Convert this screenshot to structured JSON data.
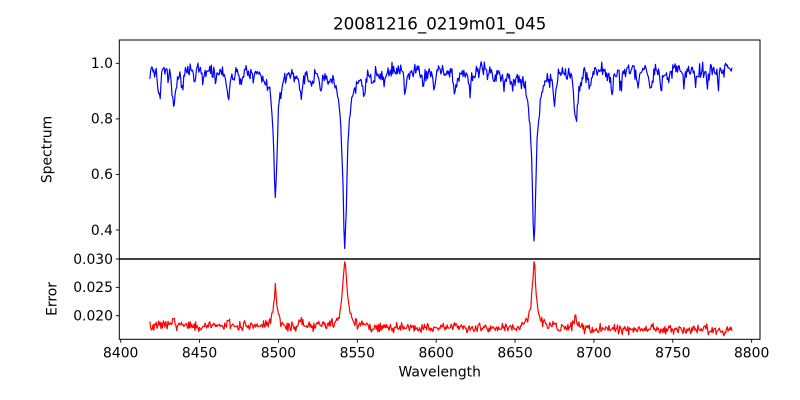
{
  "chart_data": {
    "type": "line",
    "title": "20081216_0219m01_045",
    "xlabel": "Wavelength",
    "grid": false,
    "legend": false,
    "xlim": [
      8399.1,
      8805.3
    ],
    "x_ticks": [
      8400,
      8450,
      8500,
      8550,
      8600,
      8650,
      8700,
      8750,
      8800
    ],
    "x_tick_labels": [
      "8400",
      "8450",
      "8500",
      "8550",
      "8600",
      "8650",
      "8700",
      "8750",
      "8800"
    ],
    "x_start": 8418.5,
    "x_end": 8787.5,
    "x_step": 0.5,
    "noise_seed": 7,
    "panels": [
      {
        "ylabel": "Spectrum",
        "color": "#0000ff",
        "ylim": [
          0.2956,
          1.0839
        ],
        "y_ticks": [
          0.4,
          0.6,
          0.8,
          1.0
        ],
        "y_tick_labels": [
          "0.4",
          "0.6",
          "0.8",
          "1.0"
        ],
        "continuum": 0.982,
        "noise_amp": 0.035,
        "lines_format": [
          "center_angstrom",
          "depth",
          "half_width_angstrom"
        ],
        "absorption_lines": [
          [
            8424.5,
            0.1,
            1.0
          ],
          [
            8433.5,
            0.145,
            1.1
          ],
          [
            8439.2,
            0.065,
            0.8
          ],
          [
            8446.8,
            0.05,
            0.8
          ],
          [
            8452.0,
            0.04,
            0.8
          ],
          [
            8460.0,
            0.04,
            0.8
          ],
          [
            8468.3,
            0.12,
            1.1
          ],
          [
            8476.0,
            0.04,
            0.8
          ],
          [
            8484.0,
            0.05,
            0.8
          ],
          [
            8498.0,
            0.407,
            1.3
          ],
          [
            8498.0,
            0.06,
            5.0
          ],
          [
            8514.2,
            0.1,
            1.0
          ],
          [
            8521.0,
            0.05,
            0.8
          ],
          [
            8526.8,
            0.06,
            0.9
          ],
          [
            8542.1,
            0.577,
            1.5
          ],
          [
            8542.1,
            0.07,
            6.0
          ],
          [
            8554.5,
            0.075,
            0.9
          ],
          [
            8560.0,
            0.04,
            0.8
          ],
          [
            8567.0,
            0.04,
            0.8
          ],
          [
            8580.5,
            0.075,
            0.9
          ],
          [
            8592.0,
            0.05,
            0.8
          ],
          [
            8598.8,
            0.07,
            0.9
          ],
          [
            8611.8,
            0.095,
            1.0
          ],
          [
            8621.5,
            0.085,
            0.9
          ],
          [
            8636.0,
            0.04,
            0.8
          ],
          [
            8643.0,
            0.055,
            0.8
          ],
          [
            8648.5,
            0.05,
            0.8
          ],
          [
            8662.1,
            0.55,
            1.5
          ],
          [
            8662.1,
            0.07,
            6.0
          ],
          [
            8674.8,
            0.1,
            1.0
          ],
          [
            8688.6,
            0.19,
            1.4
          ],
          [
            8697.5,
            0.06,
            0.8
          ],
          [
            8711.5,
            0.08,
            0.9
          ],
          [
            8717.0,
            0.065,
            0.8
          ],
          [
            8728.0,
            0.05,
            0.8
          ],
          [
            8736.3,
            0.075,
            0.9
          ],
          [
            8742.5,
            0.07,
            0.9
          ],
          [
            8747.0,
            0.05,
            0.8
          ],
          [
            8757.0,
            0.065,
            0.8
          ],
          [
            8764.5,
            0.06,
            0.8
          ],
          [
            8772.0,
            0.05,
            0.8
          ],
          [
            8779.0,
            0.045,
            0.8
          ]
        ]
      },
      {
        "ylabel": "Error",
        "color": "#ff0000",
        "ylim": [
          0.01584,
          0.03
        ],
        "y_ticks": [
          0.02,
          0.025,
          0.03
        ],
        "y_tick_labels": [
          "0.020",
          "0.025",
          "0.030"
        ],
        "baseline_start": 0.0181,
        "baseline_end": 0.0175,
        "noise_amp": 0.0011,
        "peaks_format": [
          "center_angstrom",
          "height",
          "half_width_angstrom"
        ],
        "peaks": [
          [
            8424.5,
            0.0006,
            1.0
          ],
          [
            8433.5,
            0.0009,
            1.0
          ],
          [
            8456.0,
            0.0007,
            1.0
          ],
          [
            8468.3,
            0.0008,
            1.0
          ],
          [
            8498.0,
            0.0062,
            1.3
          ],
          [
            8498.0,
            0.0006,
            4.0
          ],
          [
            8514.2,
            0.0009,
            1.0
          ],
          [
            8542.1,
            0.0103,
            1.5
          ],
          [
            8542.1,
            0.0012,
            5.0
          ],
          [
            8611.8,
            0.0005,
            1.0
          ],
          [
            8621.5,
            0.0005,
            1.0
          ],
          [
            8662.1,
            0.01,
            1.4
          ],
          [
            8662.1,
            0.0012,
            5.0
          ],
          [
            8674.8,
            0.0008,
            1.0
          ],
          [
            8688.6,
            0.0016,
            1.4
          ],
          [
            8736.3,
            0.0005,
            1.0
          ]
        ]
      }
    ]
  }
}
